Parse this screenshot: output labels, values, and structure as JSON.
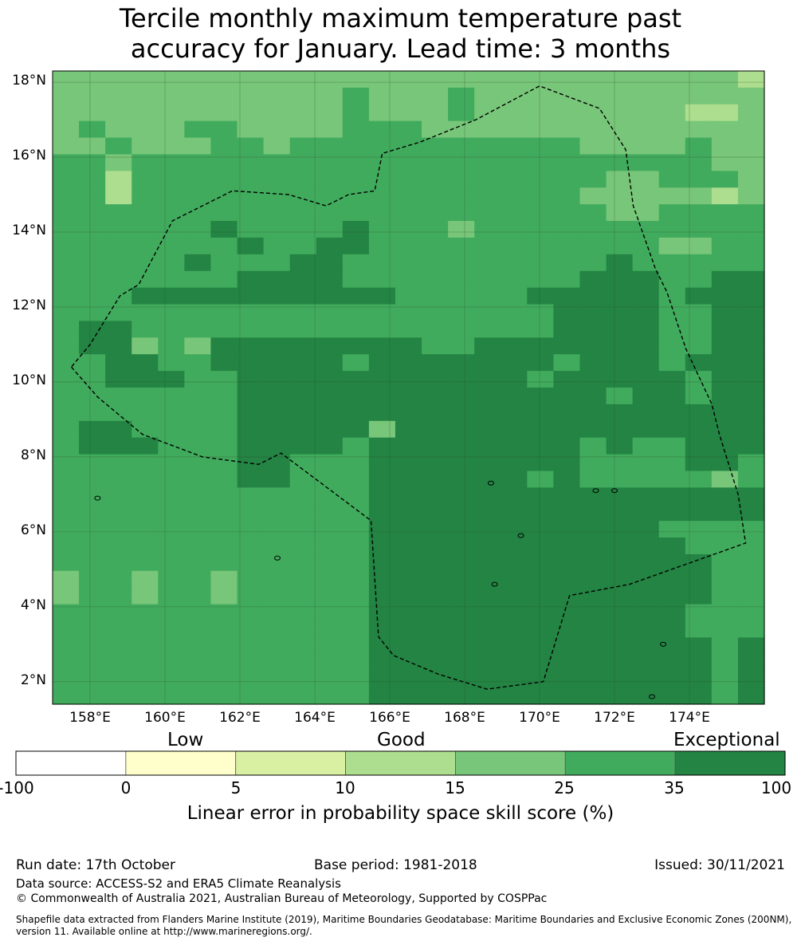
{
  "title": {
    "line1": "Tercile monthly maximum temperature past",
    "line2": "accuracy for January. Lead time: 3 months"
  },
  "map": {
    "lat_labels": [
      "18°N",
      "16°N",
      "14°N",
      "12°N",
      "10°N",
      "8°N",
      "6°N",
      "4°N",
      "2°N"
    ],
    "lon_labels": [
      "158°E",
      "160°E",
      "162°E",
      "164°E",
      "166°E",
      "168°E",
      "170°E",
      "172°E",
      "174°E"
    ],
    "grid_colors": [
      "#ffffff",
      "#ffffcc",
      "#d9f0a3",
      "#addd8e",
      "#78c679",
      "#41ab5d",
      "#238443"
    ],
    "grid_rows": [
      "444444444444444444444444443",
      "444444444445444544444444444",
      "444444444445444544444444334",
      "454445544445554444444444444",
      "445444554555555555554444544",
      "554555555555555555555555544",
      "553555555555555555555445554",
      "553555555555555555554444434",
      "555555555555555555555445555",
      "555555655556555455555555555",
      "555555565566555555555554455",
      "555556555665555555555655555",
      "555555566665555555556665566",
      "555666666666655555666665666",
      "555555555555555555566665566",
      "566555555555555555566665566",
      "566454666666665566666665566",
      "556655666665666666656665666",
      "556665566666666666566666566",
      "555555566666666666666566566",
      "555555566666666666666666666",
      "566555566666466666666666666",
      "566655566665666666665655666",
      "555555566555666666665555665",
      "555555566555666666565555545",
      "555555555555666666666666666",
      "555555555555666666666666666",
      "555555555555666666666665555",
      "555555555555666666666666555",
      "555555555555666666666666655",
      "455455455555666666666666655",
      "455455455555666666666666655",
      "555555555555666666666666555",
      "555555555555666666666666555",
      "555555555555666666666666656",
      "555555555555666666666666656",
      "555555555555666666666666656",
      "555555555555666666666666656"
    ],
    "area": {
      "lon_min": 157.0,
      "lon_max": 176.0,
      "lat_min": 1.4,
      "lat_max": 18.3
    },
    "boundary": [
      [
        157.5,
        10.4
      ],
      [
        158.2,
        9.6
      ],
      [
        159.4,
        8.6
      ],
      [
        161.0,
        8.0
      ],
      [
        162.5,
        7.8
      ],
      [
        163.1,
        8.1
      ],
      [
        164.3,
        7.2
      ],
      [
        165.5,
        6.3
      ],
      [
        165.7,
        3.2
      ],
      [
        166.1,
        2.7
      ],
      [
        167.3,
        2.2
      ],
      [
        168.6,
        1.8
      ],
      [
        170.1,
        2.0
      ],
      [
        170.8,
        4.3
      ],
      [
        172.4,
        4.6
      ],
      [
        175.5,
        5.7
      ],
      [
        175.3,
        7.0
      ],
      [
        174.8,
        8.6
      ],
      [
        174.6,
        9.4
      ],
      [
        173.9,
        10.9
      ],
      [
        173.4,
        12.4
      ],
      [
        173.1,
        13.0
      ],
      [
        172.5,
        14.7
      ],
      [
        172.3,
        16.2
      ],
      [
        171.6,
        17.3
      ],
      [
        170.0,
        17.9
      ],
      [
        168.3,
        17.0
      ],
      [
        166.8,
        16.4
      ],
      [
        165.8,
        16.1
      ],
      [
        165.6,
        15.1
      ],
      [
        164.9,
        15.0
      ],
      [
        164.3,
        14.7
      ],
      [
        163.3,
        15.0
      ],
      [
        161.8,
        15.1
      ],
      [
        160.2,
        14.3
      ],
      [
        159.3,
        12.6
      ],
      [
        158.8,
        12.3
      ],
      [
        158.0,
        11.0
      ],
      [
        157.5,
        10.4
      ]
    ]
  },
  "colorbar": {
    "categories": [
      "Low",
      "Good",
      "Exceptional"
    ],
    "colors": [
      "#ffffff",
      "#ffffcc",
      "#d9f0a3",
      "#addd8e",
      "#78c679",
      "#41ab5d",
      "#238443"
    ],
    "ticks": [
      "-100",
      "0",
      "5",
      "10",
      "15",
      "25",
      "35",
      "100"
    ],
    "label": "Linear error in probability space skill score (%)"
  },
  "footer": {
    "run_date": "Run date: 17th October",
    "base_period": "Base period: 1981-2018",
    "issued": "Issued: 30/11/2021",
    "data_source": "Data source: ACCESS-S2 and ERA5 Climate Reanalysis",
    "copyright": "© Commonwealth of Australia 2021, Australian Bureau of Meteorology, Supported by COSPPac",
    "shapefile_line1": "Shapefile data extracted from Flanders Marine Institute (2019), Maritime Boundaries Geodatabase: Maritime Boundaries and Exclusive Economic Zones (200NM),",
    "shapefile_line2": "version 11. Available online at http://www.marineregions.org/."
  }
}
